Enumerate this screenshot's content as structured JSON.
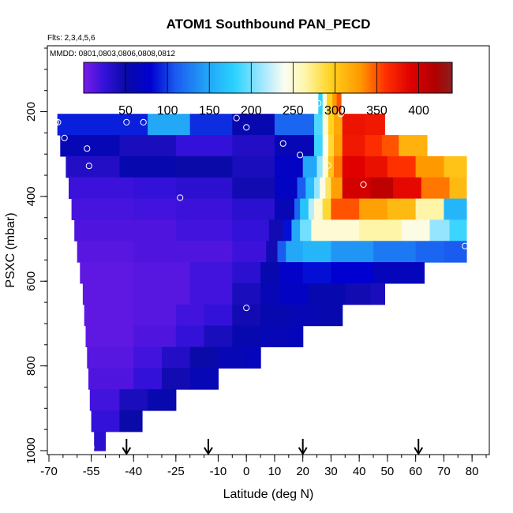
{
  "chart_data": {
    "type": "heatmap",
    "title": "ATOM1 Southbound PAN_PECD",
    "subtitle_flights": "Flts: 2,3,4,5,6",
    "subtitle_dates": "MMDD: 0801,0803,0806,0808,0812",
    "xlabel": "Latitude (deg N)",
    "ylabel": "PSXC (mbar)",
    "xlim": [
      -70,
      85
    ],
    "ylim_reversed": [
      1000,
      50
    ],
    "x_major_ticks": [
      -70,
      -55,
      -40,
      -25,
      -10,
      0,
      10,
      20,
      30,
      40,
      50,
      60,
      70,
      80
    ],
    "x_major_labels": [
      "-70",
      "-55",
      "-40",
      "-25",
      "-10",
      "0",
      "10",
      "20",
      "30",
      "40",
      "50",
      "60",
      "70",
      "80"
    ],
    "y_major_ticks": [
      200,
      400,
      600,
      800,
      1000
    ],
    "y_major_labels": [
      "200",
      "400",
      "600",
      "800",
      "1000"
    ],
    "colorbar": {
      "min": 0,
      "max": 440,
      "ticks": [
        50,
        100,
        150,
        200,
        250,
        300,
        350,
        400
      ],
      "tick_labels": [
        "50",
        "100",
        "150",
        "200",
        "250",
        "300",
        "350",
        "400"
      ],
      "color_stops": [
        [
          0,
          "#7a1ce8"
        ],
        [
          25,
          "#3311d9"
        ],
        [
          50,
          "#0a0aa8"
        ],
        [
          80,
          "#0000d0"
        ],
        [
          110,
          "#1a5cf0"
        ],
        [
          150,
          "#22a8f7"
        ],
        [
          180,
          "#2ad2ff"
        ],
        [
          215,
          "#a8e8ff"
        ],
        [
          240,
          "#fbfdf2"
        ],
        [
          265,
          "#fff5a8"
        ],
        [
          295,
          "#ffd21f"
        ],
        [
          330,
          "#ff9900"
        ],
        [
          360,
          "#ff3000"
        ],
        [
          390,
          "#e00000"
        ],
        [
          420,
          "#b00000"
        ],
        [
          440,
          "#8a2020"
        ]
      ]
    },
    "pressure_bands_mbar": [
      [
        205,
        255
      ],
      [
        255,
        305
      ],
      [
        305,
        355
      ],
      [
        355,
        405
      ],
      [
        405,
        455
      ],
      [
        455,
        505
      ],
      [
        505,
        555
      ],
      [
        555,
        605
      ],
      [
        605,
        655
      ],
      [
        655,
        705
      ],
      [
        705,
        755
      ],
      [
        755,
        805
      ],
      [
        805,
        855
      ],
      [
        855,
        905
      ],
      [
        905,
        955
      ],
      [
        955,
        1000
      ]
    ],
    "band_segments": [
      [
        [
          -67,
          -35,
          90
        ],
        [
          -35,
          -20,
          150
        ],
        [
          -20,
          -5,
          95
        ],
        [
          -5,
          10,
          55
        ],
        [
          10,
          24,
          115
        ],
        [
          24,
          27,
          190
        ],
        [
          27,
          29,
          250
        ],
        [
          29,
          31,
          295
        ],
        [
          31,
          34,
          320
        ],
        [
          34,
          42,
          378
        ],
        [
          42,
          49,
          375
        ]
      ],
      [
        [
          -66,
          -45,
          60
        ],
        [
          -45,
          -25,
          40
        ],
        [
          -25,
          -5,
          25
        ],
        [
          -5,
          10,
          35
        ],
        [
          10,
          24,
          60
        ],
        [
          24,
          27,
          185
        ],
        [
          27,
          29,
          240
        ],
        [
          29,
          31,
          290
        ],
        [
          31,
          34,
          325
        ],
        [
          34,
          42,
          375
        ],
        [
          42,
          48,
          362
        ],
        [
          48,
          54,
          350
        ],
        [
          54,
          64,
          315
        ]
      ],
      [
        [
          -64,
          -45,
          35
        ],
        [
          -45,
          -25,
          55
        ],
        [
          -25,
          -5,
          50
        ],
        [
          -5,
          10,
          40
        ],
        [
          10,
          20,
          70
        ],
        [
          20,
          25,
          150
        ],
        [
          25,
          27,
          210
        ],
        [
          27,
          29,
          250
        ],
        [
          29,
          31,
          305
        ],
        [
          31,
          34,
          340
        ],
        [
          34,
          42,
          390
        ],
        [
          42,
          50,
          380
        ],
        [
          50,
          60,
          360
        ],
        [
          60,
          70,
          330
        ],
        [
          70,
          78,
          305
        ]
      ],
      [
        [
          -63,
          -40,
          22
        ],
        [
          -40,
          -25,
          25
        ],
        [
          -25,
          -5,
          30
        ],
        [
          -5,
          10,
          45
        ],
        [
          10,
          18,
          70
        ],
        [
          18,
          21,
          110
        ],
        [
          21,
          24,
          165
        ],
        [
          24,
          26,
          210
        ],
        [
          26,
          28,
          245
        ],
        [
          28,
          30,
          280
        ],
        [
          30,
          34,
          325
        ],
        [
          34,
          44,
          398
        ],
        [
          44,
          52,
          412
        ],
        [
          52,
          62,
          385
        ],
        [
          62,
          72,
          340
        ],
        [
          72,
          78,
          310
        ]
      ],
      [
        [
          -62,
          -40,
          18
        ],
        [
          -40,
          -25,
          20
        ],
        [
          -25,
          -5,
          22
        ],
        [
          -5,
          10,
          30
        ],
        [
          10,
          17,
          60
        ],
        [
          17,
          19,
          115
        ],
        [
          19,
          22,
          170
        ],
        [
          22,
          24,
          220
        ],
        [
          24,
          27,
          250
        ],
        [
          27,
          30,
          290
        ],
        [
          30,
          40,
          350
        ],
        [
          40,
          50,
          325
        ],
        [
          50,
          60,
          310
        ],
        [
          60,
          70,
          265
        ],
        [
          70,
          78,
          160
        ]
      ],
      [
        [
          -61,
          -40,
          15
        ],
        [
          -40,
          -25,
          15
        ],
        [
          -25,
          -5,
          20
        ],
        [
          -5,
          8,
          25
        ],
        [
          8,
          13,
          45
        ],
        [
          13,
          16,
          85
        ],
        [
          16,
          19,
          150
        ],
        [
          19,
          23,
          200
        ],
        [
          23,
          40,
          250
        ],
        [
          40,
          55,
          265
        ],
        [
          55,
          65,
          245
        ],
        [
          65,
          72,
          210
        ],
        [
          72,
          78,
          185
        ]
      ],
      [
        [
          -60,
          -40,
          12
        ],
        [
          -40,
          -20,
          15
        ],
        [
          -20,
          -5,
          15
        ],
        [
          -5,
          7,
          22
        ],
        [
          7,
          11,
          45
        ],
        [
          11,
          14,
          110
        ],
        [
          14,
          20,
          150
        ],
        [
          20,
          30,
          160
        ],
        [
          30,
          45,
          140
        ],
        [
          45,
          60,
          125
        ],
        [
          60,
          70,
          115
        ],
        [
          70,
          78,
          110
        ]
      ],
      [
        [
          -59,
          -40,
          10
        ],
        [
          -40,
          -20,
          12
        ],
        [
          -20,
          -5,
          20
        ],
        [
          -5,
          5,
          30
        ],
        [
          5,
          12,
          55
        ],
        [
          12,
          20,
          75
        ],
        [
          20,
          30,
          85
        ],
        [
          30,
          45,
          80
        ],
        [
          45,
          55,
          65
        ],
        [
          55,
          63,
          65
        ]
      ],
      [
        [
          -58,
          -40,
          10
        ],
        [
          -40,
          -20,
          12
        ],
        [
          -20,
          -5,
          20
        ],
        [
          -5,
          5,
          40
        ],
        [
          5,
          12,
          60
        ],
        [
          12,
          22,
          70
        ],
        [
          22,
          35,
          55
        ],
        [
          35,
          44,
          45
        ],
        [
          44,
          49,
          40
        ]
      ],
      [
        [
          -57.5,
          -40,
          10
        ],
        [
          -40,
          -25,
          12
        ],
        [
          -25,
          -15,
          20
        ],
        [
          -15,
          -5,
          25
        ],
        [
          -5,
          5,
          45
        ],
        [
          5,
          15,
          55
        ],
        [
          15,
          25,
          60
        ],
        [
          25,
          34,
          55
        ]
      ],
      [
        [
          -57,
          -40,
          10
        ],
        [
          -40,
          -25,
          15
        ],
        [
          -25,
          -15,
          25
        ],
        [
          -15,
          -5,
          40
        ],
        [
          -5,
          5,
          55
        ],
        [
          5,
          15,
          60
        ],
        [
          15,
          20,
          65
        ]
      ],
      [
        [
          -56.5,
          -40,
          12
        ],
        [
          -40,
          -30,
          20
        ],
        [
          -30,
          -20,
          35
        ],
        [
          -20,
          -10,
          50
        ],
        [
          -10,
          0,
          60
        ],
        [
          0,
          5,
          65
        ]
      ],
      [
        [
          -56,
          -40,
          15
        ],
        [
          -40,
          -30,
          25
        ],
        [
          -30,
          -20,
          45
        ],
        [
          -20,
          -10,
          60
        ]
      ],
      [
        [
          -55.5,
          -45,
          20
        ],
        [
          -45,
          -35,
          40
        ],
        [
          -35,
          -25,
          55
        ]
      ],
      [
        [
          -55,
          -45,
          25
        ],
        [
          -45,
          -37,
          50
        ]
      ],
      [
        [
          -54,
          -50,
          30
        ]
      ]
    ],
    "top_strip": {
      "pressure_mbar": [
        150,
        205
      ],
      "segments": [
        [
          25.5,
          27,
          180
        ],
        [
          27,
          28.5,
          250
        ],
        [
          28.5,
          30.5,
          295
        ],
        [
          30.5,
          32,
          330
        ],
        [
          32,
          33.5,
          350
        ]
      ]
    },
    "sample_points": [
      {
        "lat": -67.5,
        "p": 225
      },
      {
        "lat": -66.8,
        "p": 225
      },
      {
        "lat": -64.5,
        "p": 262
      },
      {
        "lat": -56.5,
        "p": 287
      },
      {
        "lat": -55.8,
        "p": 328
      },
      {
        "lat": -55,
        "p": 992
      },
      {
        "lat": -42.5,
        "p": 225
      },
      {
        "lat": -36.5,
        "p": 225
      },
      {
        "lat": -23.5,
        "p": 403
      },
      {
        "lat": -3.5,
        "p": 215
      },
      {
        "lat": 0,
        "p": 237
      },
      {
        "lat": 13,
        "p": 275
      },
      {
        "lat": 19,
        "p": 302
      },
      {
        "lat": 25.5,
        "p": 180
      },
      {
        "lat": 29,
        "p": 327
      },
      {
        "lat": 33.5,
        "p": 205
      },
      {
        "lat": 41.5,
        "p": 372
      },
      {
        "lat": 77.5,
        "p": 517
      },
      {
        "lat": 0,
        "p": 663
      }
    ],
    "arrow_markers_lat": [
      -42.5,
      -13.5,
      20,
      61
    ]
  }
}
